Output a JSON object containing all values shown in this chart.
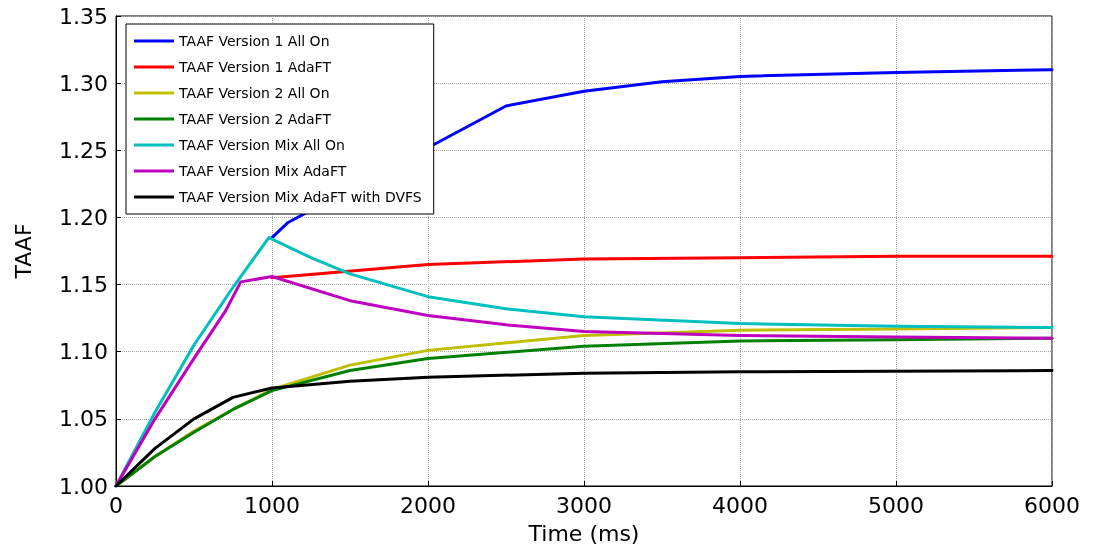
{
  "chart_data": {
    "type": "line",
    "xlabel": "Time (ms)",
    "ylabel": "TAAF",
    "xlim": [
      0,
      6000
    ],
    "xticks": [
      0,
      1000,
      2000,
      3000,
      4000,
      5000,
      6000
    ],
    "ylim": [
      1.0,
      1.35
    ],
    "yticks": [
      {
        "value": 1.0,
        "label": "1.00"
      },
      {
        "value": 1.05,
        "label": "1.05"
      },
      {
        "value": 1.1,
        "label": "1.10"
      },
      {
        "value": 1.15,
        "label": "1.15"
      },
      {
        "value": 1.2,
        "label": "1.20"
      },
      {
        "value": 1.25,
        "label": "1.25"
      },
      {
        "value": 1.3,
        "label": "1.30"
      },
      {
        "value": 1.35,
        "label": "1.35"
      }
    ],
    "grid": true,
    "legend": "top left",
    "marker": "none",
    "line_style": "solid",
    "series": [
      {
        "name": "TAAF Version 1 All On",
        "color": "#0000ff",
        "x": [
          1000,
          1100,
          2500,
          3000,
          3500,
          4000,
          5000,
          6000
        ],
        "values": [
          1.185,
          1.196,
          1.283,
          1.294,
          1.301,
          1.305,
          1.308,
          1.31
        ]
      },
      {
        "name": "TAAF Version 1 AdaFT",
        "color": "#ff0000",
        "x": [
          1000,
          2000,
          3000,
          4000,
          5000,
          6000
        ],
        "values": [
          1.155,
          1.165,
          1.169,
          1.17,
          1.171,
          1.171
        ]
      },
      {
        "name": "TAAF Version 2 All On",
        "color": "#bfbf00",
        "x": [
          0,
          250,
          500,
          750,
          1000,
          1500,
          2000,
          3000,
          4000,
          5000,
          6000
        ],
        "values": [
          1.0,
          1.022,
          1.041,
          1.057,
          1.072,
          1.09,
          1.101,
          1.112,
          1.116,
          1.117,
          1.118
        ]
      },
      {
        "name": "TAAF Version 2 AdaFT",
        "color": "#008000",
        "x": [
          0,
          250,
          500,
          750,
          1000,
          1500,
          2000,
          3000,
          4000,
          5000,
          6000
        ],
        "values": [
          1.0,
          1.022,
          1.04,
          1.057,
          1.071,
          1.086,
          1.095,
          1.104,
          1.108,
          1.109,
          1.11
        ]
      },
      {
        "name": "TAAF Version Mix All On",
        "color": "#00bfbf",
        "x": [
          0,
          250,
          500,
          750,
          980,
          1250,
          1500,
          2000,
          2500,
          3000,
          4000,
          5000,
          6000
        ],
        "values": [
          1.0,
          1.055,
          1.105,
          1.148,
          1.185,
          1.17,
          1.158,
          1.141,
          1.132,
          1.126,
          1.121,
          1.119,
          1.118
        ]
      },
      {
        "name": "TAAF Version Mix AdaFT",
        "color": "#bf00bf",
        "x": [
          0,
          250,
          500,
          700,
          800,
          1000,
          1500,
          2000,
          2500,
          3000,
          4000,
          5000,
          6000
        ],
        "values": [
          1.0,
          1.05,
          1.095,
          1.13,
          1.152,
          1.156,
          1.138,
          1.127,
          1.12,
          1.115,
          1.112,
          1.111,
          1.11
        ]
      },
      {
        "name": "TAAF Version Mix AdaFT with DVFS",
        "color": "#000000",
        "x": [
          0,
          250,
          500,
          750,
          1000,
          1500,
          2000,
          3000,
          4000,
          6000
        ],
        "values": [
          1.0,
          1.028,
          1.05,
          1.066,
          1.073,
          1.078,
          1.081,
          1.084,
          1.085,
          1.086
        ]
      }
    ]
  }
}
